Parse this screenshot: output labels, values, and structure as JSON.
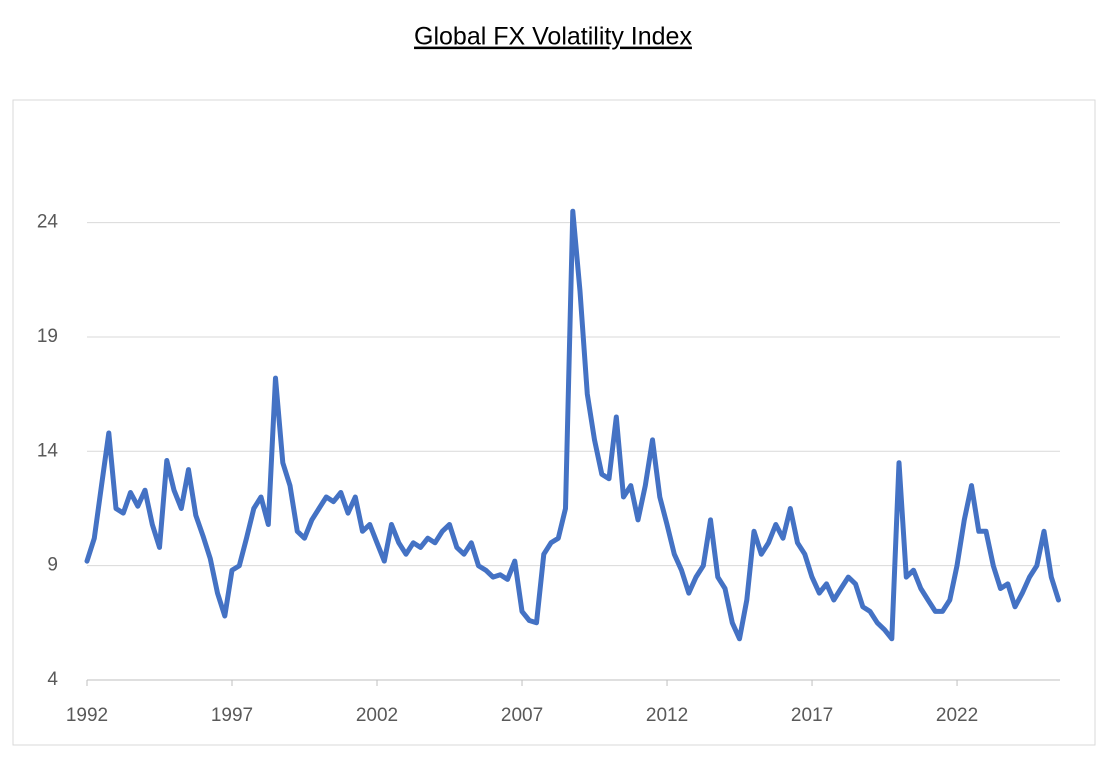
{
  "chart_data": {
    "type": "line",
    "title": "Global FX Volatility Index",
    "x": [
      1992,
      1992.25,
      1992.5,
      1992.75,
      1993,
      1993.25,
      1993.5,
      1993.75,
      1994,
      1994.25,
      1994.5,
      1994.75,
      1995,
      1995.25,
      1995.5,
      1995.75,
      1996,
      1996.25,
      1996.5,
      1996.75,
      1997,
      1997.25,
      1997.5,
      1997.75,
      1998,
      1998.25,
      1998.5,
      1998.75,
      1999,
      1999.25,
      1999.5,
      1999.75,
      2000,
      2000.25,
      2000.5,
      2000.75,
      2001,
      2001.25,
      2001.5,
      2001.75,
      2002,
      2002.25,
      2002.5,
      2002.75,
      2003,
      2003.25,
      2003.5,
      2003.75,
      2004,
      2004.25,
      2004.5,
      2004.75,
      2005,
      2005.25,
      2005.5,
      2005.75,
      2006,
      2006.25,
      2006.5,
      2006.75,
      2007,
      2007.25,
      2007.5,
      2007.75,
      2008,
      2008.25,
      2008.5,
      2008.75,
      2009,
      2009.25,
      2009.5,
      2009.75,
      2010,
      2010.25,
      2010.5,
      2010.75,
      2011,
      2011.25,
      2011.5,
      2011.75,
      2012,
      2012.25,
      2012.5,
      2012.75,
      2013,
      2013.25,
      2013.5,
      2013.75,
      2014,
      2014.25,
      2014.5,
      2014.75,
      2015,
      2015.25,
      2015.5,
      2015.75,
      2016,
      2016.25,
      2016.5,
      2016.75,
      2017,
      2017.25,
      2017.5,
      2017.75,
      2018,
      2018.25,
      2018.5,
      2018.75,
      2019,
      2019.25,
      2019.5,
      2019.75,
      2020,
      2020.25,
      2020.5,
      2020.75,
      2021,
      2021.25,
      2021.5,
      2021.75,
      2022,
      2022.25,
      2022.5,
      2022.75,
      2023,
      2023.25,
      2023.5,
      2023.75,
      2024,
      2024.25,
      2024.5,
      2024.75,
      2025,
      2025.25,
      2025.5
    ],
    "values": [
      9.2,
      10.2,
      12.5,
      14.8,
      11.5,
      11.3,
      12.2,
      11.6,
      12.3,
      10.8,
      9.8,
      13.6,
      12.3,
      11.5,
      13.2,
      11.2,
      10.3,
      9.3,
      7.8,
      6.8,
      8.8,
      9.0,
      10.2,
      11.5,
      12.0,
      10.8,
      17.2,
      13.5,
      12.5,
      10.5,
      10.2,
      11.0,
      11.5,
      12.0,
      11.8,
      12.2,
      11.3,
      12.0,
      10.5,
      10.8,
      10.0,
      9.2,
      10.8,
      10.0,
      9.5,
      10.0,
      9.8,
      10.2,
      10.0,
      10.5,
      10.8,
      9.8,
      9.5,
      10.0,
      9.0,
      8.8,
      8.5,
      8.6,
      8.4,
      9.2,
      7.0,
      6.6,
      6.5,
      9.5,
      10.0,
      10.2,
      11.5,
      24.5,
      21.0,
      16.5,
      14.5,
      13.0,
      12.8,
      15.5,
      12.0,
      12.5,
      11.0,
      12.5,
      14.5,
      12.0,
      10.8,
      9.5,
      8.8,
      7.8,
      8.5,
      9.0,
      11.0,
      8.5,
      8.0,
      6.5,
      5.8,
      7.5,
      10.5,
      9.5,
      10.0,
      10.8,
      10.2,
      11.5,
      10.0,
      9.5,
      8.5,
      7.8,
      8.2,
      7.5,
      8.0,
      8.5,
      8.2,
      7.2,
      7.0,
      6.5,
      6.2,
      5.8,
      13.5,
      8.5,
      8.8,
      8.0,
      7.5,
      7.0,
      7.0,
      7.5,
      9.0,
      11.0,
      12.5,
      10.5,
      10.5,
      9.0,
      8.0,
      8.2,
      7.2,
      7.8,
      8.5,
      9.0,
      10.5,
      8.5,
      7.5
    ],
    "color": "#4472c4",
    "xlim": [
      1992,
      2025.55
    ],
    "xticks": [
      1992,
      1997,
      2002,
      2007,
      2012,
      2017,
      2022
    ],
    "ylim": [
      4,
      27
    ],
    "yticks": [
      4,
      9,
      14,
      19,
      24
    ],
    "grid": true
  }
}
